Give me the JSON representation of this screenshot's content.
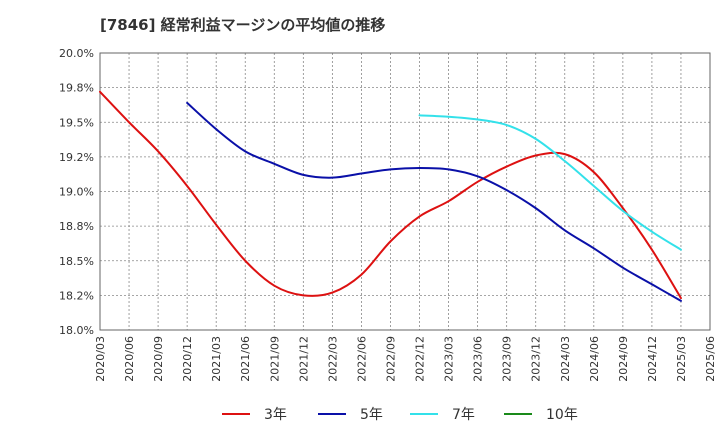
{
  "chart_data": {
    "type": "line",
    "title": "[7846]  経常利益マージンの平均値の推移",
    "xlabel": "",
    "ylabel": "",
    "ylim": [
      18.0,
      20.0
    ],
    "y_ticks": [
      "18.0%",
      "18.2%",
      "18.5%",
      "18.8%",
      "19.0%",
      "19.2%",
      "19.5%",
      "19.8%",
      "20.0%"
    ],
    "x_ticks": [
      "2020/03",
      "2020/06",
      "2020/09",
      "2020/12",
      "2021/03",
      "2021/06",
      "2021/09",
      "2021/12",
      "2022/03",
      "2022/06",
      "2022/09",
      "2022/12",
      "2023/03",
      "2023/06",
      "2023/09",
      "2023/12",
      "2024/03",
      "2024/06",
      "2024/09",
      "2024/12",
      "2025/03",
      "2025/06"
    ],
    "grid": true,
    "legend_position": "bottom",
    "series": [
      {
        "name": "3年",
        "color": "#dd1111",
        "x": [
          "2020/03",
          "2020/06",
          "2020/09",
          "2020/12",
          "2021/03",
          "2021/06",
          "2021/09",
          "2021/12",
          "2022/03",
          "2022/06",
          "2022/09",
          "2022/12",
          "2023/03",
          "2023/06",
          "2023/09",
          "2023/12",
          "2024/03",
          "2024/06",
          "2024/09",
          "2024/12",
          "2025/03"
        ],
        "values": [
          19.72,
          19.5,
          19.29,
          19.04,
          18.76,
          18.5,
          18.32,
          18.25,
          18.27,
          18.4,
          18.64,
          18.82,
          18.93,
          19.07,
          19.18,
          19.26,
          19.27,
          19.14,
          18.88,
          18.58,
          18.23
        ]
      },
      {
        "name": "5年",
        "color": "#0a10a8",
        "x": [
          "2020/12",
          "2021/03",
          "2021/06",
          "2021/09",
          "2021/12",
          "2022/03",
          "2022/06",
          "2022/09",
          "2022/12",
          "2023/03",
          "2023/06",
          "2023/09",
          "2023/12",
          "2024/03",
          "2024/06",
          "2024/09",
          "2024/12",
          "2025/03"
        ],
        "values": [
          19.64,
          19.45,
          19.29,
          19.2,
          19.12,
          19.1,
          19.13,
          19.16,
          19.17,
          19.16,
          19.11,
          19.01,
          18.88,
          18.72,
          18.59,
          18.45,
          18.33,
          18.21
        ]
      },
      {
        "name": "7年",
        "color": "#33e1ea",
        "x": [
          "2022/12",
          "2023/03",
          "2023/06",
          "2023/09",
          "2023/12",
          "2024/03",
          "2024/06",
          "2024/09",
          "2024/12",
          "2025/03"
        ],
        "values": [
          19.55,
          19.54,
          19.52,
          19.48,
          19.38,
          19.22,
          19.04,
          18.86,
          18.71,
          18.58
        ]
      },
      {
        "name": "10年",
        "color": "#1a8a1a",
        "x": [],
        "values": []
      }
    ]
  }
}
